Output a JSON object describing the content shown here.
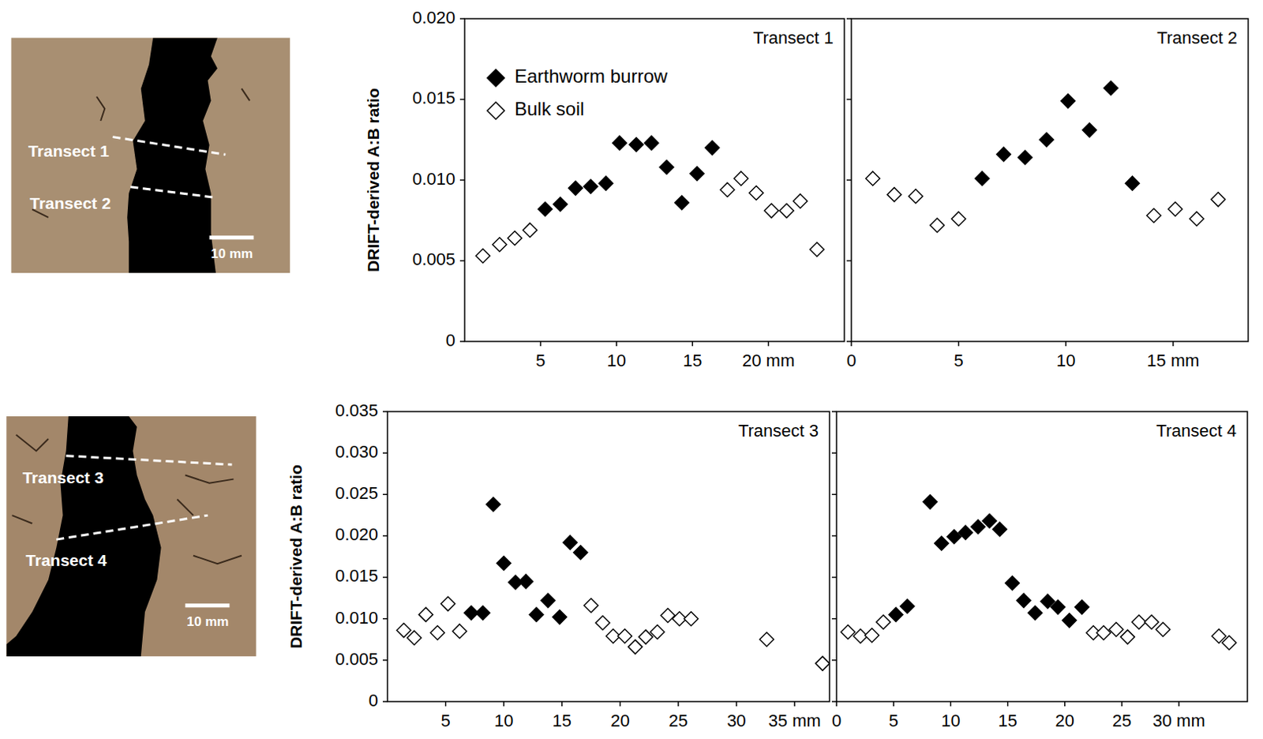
{
  "chart_data": [
    {
      "type": "scatter",
      "title": "Transect 1",
      "y_label": "DRIFT-derived A:B ratio",
      "legend": "upper left",
      "xlim": [
        0,
        25
      ],
      "xticks": [
        5,
        10,
        15,
        {
          "value": 20,
          "label": "20 mm"
        }
      ],
      "ylim": [
        0,
        0.02
      ],
      "yticks": [
        0,
        0.005,
        {
          "value": 0.01,
          "label": "0.010"
        },
        0.015,
        {
          "value": 0.02,
          "label": "0.020"
        }
      ],
      "series": [
        {
          "name": "Earthworm burrow",
          "color": "#000000",
          "marker": "diamond",
          "x": [
            5.3,
            6.3,
            7.3,
            8.3,
            9.3,
            10.2,
            11.3,
            12.3,
            13.3,
            14.3,
            15.3,
            16.3
          ],
          "values": [
            0.0082,
            0.0085,
            0.0095,
            0.0096,
            0.0098,
            0.0123,
            0.0122,
            0.0123,
            0.0108,
            0.0086,
            0.0104,
            0.012
          ]
        },
        {
          "name": "Bulk soil",
          "color": "#ffffff",
          "marker": "diamond-open",
          "x": [
            1.2,
            2.3,
            3.3,
            4.3,
            17.3,
            18.2,
            19.2,
            20.2,
            21.2,
            22.1,
            23.2
          ],
          "values": [
            0.0053,
            0.006,
            0.0064,
            0.0069,
            0.0094,
            0.0101,
            0.0092,
            0.0081,
            0.0081,
            0.0087,
            0.0057
          ]
        }
      ]
    },
    {
      "type": "scatter",
      "title": "Transect 2",
      "tick_labels": "x",
      "xlim": [
        0,
        18.5
      ],
      "xticks": [
        0,
        5,
        10,
        {
          "value": 15,
          "label": "15 mm"
        }
      ],
      "ylim": [
        0,
        0.02
      ],
      "yticks": [
        0,
        0.005,
        0.01,
        0.015,
        0.02
      ],
      "series": [
        {
          "name": "Earthworm burrow",
          "color": "#000000",
          "marker": "diamond",
          "x": [
            6.1,
            7.1,
            8.1,
            9.1,
            10.1,
            11.1,
            12.1,
            13.1
          ],
          "values": [
            0.0101,
            0.0116,
            0.0114,
            0.0125,
            0.0149,
            0.0131,
            0.0157,
            0.0098
          ]
        },
        {
          "name": "Bulk soil",
          "color": "#ffffff",
          "marker": "diamond-open",
          "x": [
            1.0,
            2.0,
            3.0,
            4.0,
            5.0,
            14.1,
            15.1,
            16.1,
            17.1
          ],
          "values": [
            0.0101,
            0.0091,
            0.009,
            0.0072,
            0.0076,
            0.0078,
            0.0082,
            0.0076,
            0.0088
          ]
        }
      ]
    },
    {
      "type": "scatter",
      "title": "Transect 3",
      "y_label": "DRIFT-derived A:B ratio",
      "xlim": [
        0,
        38
      ],
      "xticks": [
        5,
        10,
        15,
        20,
        25,
        30,
        {
          "value": 35,
          "label": "35 mm"
        }
      ],
      "ylim": [
        0,
        0.035
      ],
      "yticks": [
        0,
        0.005,
        {
          "value": 0.01,
          "label": "0.010"
        },
        0.015,
        {
          "value": 0.02,
          "label": "0.020"
        },
        0.025,
        {
          "value": 0.03,
          "label": "0.030"
        },
        0.035
      ],
      "series": [
        {
          "name": "Earthworm burrow",
          "color": "#000000",
          "marker": "diamond",
          "x": [
            7.2,
            8.2,
            9.1,
            10.0,
            11.0,
            11.9,
            12.8,
            13.8,
            14.8,
            15.7,
            16.6
          ],
          "values": [
            0.0107,
            0.0107,
            0.0238,
            0.0167,
            0.0144,
            0.0145,
            0.0105,
            0.0122,
            0.0102,
            0.0192,
            0.018
          ]
        },
        {
          "name": "Bulk soil",
          "color": "#ffffff",
          "marker": "diamond-open",
          "x": [
            1.4,
            2.3,
            3.3,
            4.3,
            5.2,
            6.2,
            17.5,
            18.5,
            19.4,
            20.4,
            21.3,
            22.2,
            23.2,
            24.1,
            25.1,
            26.1,
            32.6,
            37.4
          ],
          "values": [
            0.0086,
            0.0077,
            0.0105,
            0.0083,
            0.0118,
            0.0085,
            0.0116,
            0.0095,
            0.0079,
            0.0079,
            0.0066,
            0.0078,
            0.0084,
            0.0104,
            0.01,
            0.01,
            0.0075,
            0.0046
          ]
        }
      ]
    },
    {
      "type": "scatter",
      "title": "Transect 4",
      "tick_labels": "x",
      "xlim": [
        0,
        36
      ],
      "xticks": [
        0,
        5,
        10,
        15,
        20,
        25,
        {
          "value": 30,
          "label": "30 mm"
        }
      ],
      "ylim": [
        0,
        0.035
      ],
      "yticks": [
        0,
        0.005,
        0.01,
        0.015,
        0.02,
        0.025,
        0.03,
        0.035
      ],
      "series": [
        {
          "name": "Earthworm burrow",
          "color": "#000000",
          "marker": "diamond",
          "x": [
            5.2,
            6.2,
            8.2,
            9.2,
            10.3,
            11.3,
            12.4,
            13.4,
            14.3,
            15.4,
            16.4,
            17.4,
            18.5,
            19.4,
            20.4,
            21.5
          ],
          "values": [
            0.0105,
            0.0115,
            0.0241,
            0.0191,
            0.0199,
            0.0204,
            0.0211,
            0.0218,
            0.0208,
            0.0143,
            0.0122,
            0.0107,
            0.0121,
            0.0114,
            0.0098,
            0.0114
          ]
        },
        {
          "name": "Bulk soil",
          "color": "#ffffff",
          "marker": "diamond-open",
          "x": [
            1.0,
            2.1,
            3.1,
            4.1,
            22.5,
            23.4,
            24.5,
            25.5,
            26.5,
            27.6,
            28.6,
            33.5,
            34.4
          ],
          "values": [
            0.0084,
            0.0079,
            0.008,
            0.0096,
            0.0083,
            0.0083,
            0.0087,
            0.0078,
            0.0096,
            0.0096,
            0.0087,
            0.0079,
            0.0071
          ]
        }
      ]
    }
  ],
  "photos": [
    {
      "transects": [
        "Transect 1",
        "Transect 2"
      ],
      "scale_bar": "10 mm"
    },
    {
      "transects": [
        "Transect 3",
        "Transect 4"
      ],
      "scale_bar": "10 mm"
    }
  ]
}
